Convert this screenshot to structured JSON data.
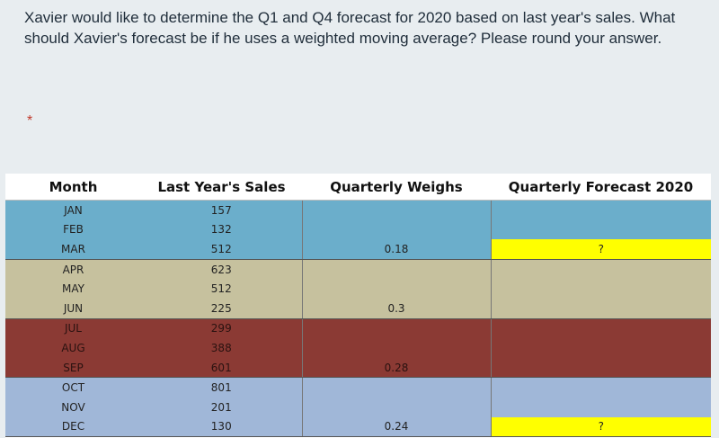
{
  "question": {
    "text": "Xavier would like to determine the Q1 and Q4 forecast for 2020 based on last year's sales. What should Xavier's forecast be if he uses a weighted moving average? Please round your answer.",
    "required_marker": "*"
  },
  "table": {
    "headers": [
      "Month",
      "Last Year's Sales",
      "Quarterly Weighs",
      "Quarterly Forecast 2020"
    ],
    "rows": [
      {
        "month": "JAN",
        "sales": "157",
        "weight": "",
        "forecast": "",
        "quarter": "q1"
      },
      {
        "month": "FEB",
        "sales": "132",
        "weight": "",
        "forecast": "",
        "quarter": "q1"
      },
      {
        "month": "MAR",
        "sales": "512",
        "weight": "0.18",
        "forecast": "?",
        "quarter": "q1"
      },
      {
        "month": "APR",
        "sales": "623",
        "weight": "",
        "forecast": "",
        "quarter": "q2"
      },
      {
        "month": "MAY",
        "sales": "512",
        "weight": "",
        "forecast": "",
        "quarter": "q2"
      },
      {
        "month": "JUN",
        "sales": "225",
        "weight": "0.3",
        "forecast": "",
        "quarter": "q2"
      },
      {
        "month": "JUL",
        "sales": "299",
        "weight": "",
        "forecast": "",
        "quarter": "q3"
      },
      {
        "month": "AUG",
        "sales": "388",
        "weight": "",
        "forecast": "",
        "quarter": "q3"
      },
      {
        "month": "SEP",
        "sales": "601",
        "weight": "0.28",
        "forecast": "",
        "quarter": "q3"
      },
      {
        "month": "OCT",
        "sales": "801",
        "weight": "",
        "forecast": "",
        "quarter": "q4"
      },
      {
        "month": "NOV",
        "sales": "201",
        "weight": "",
        "forecast": "",
        "quarter": "q4"
      },
      {
        "month": "DEC",
        "sales": "130",
        "weight": "0.24",
        "forecast": "?",
        "quarter": "q4"
      }
    ],
    "colors": {
      "q1": "#6baecb",
      "q2": "#c6c19e",
      "q3": "#8b3a34",
      "q4": "#a0b7d8",
      "forecast_highlight": "#ffff00"
    }
  }
}
